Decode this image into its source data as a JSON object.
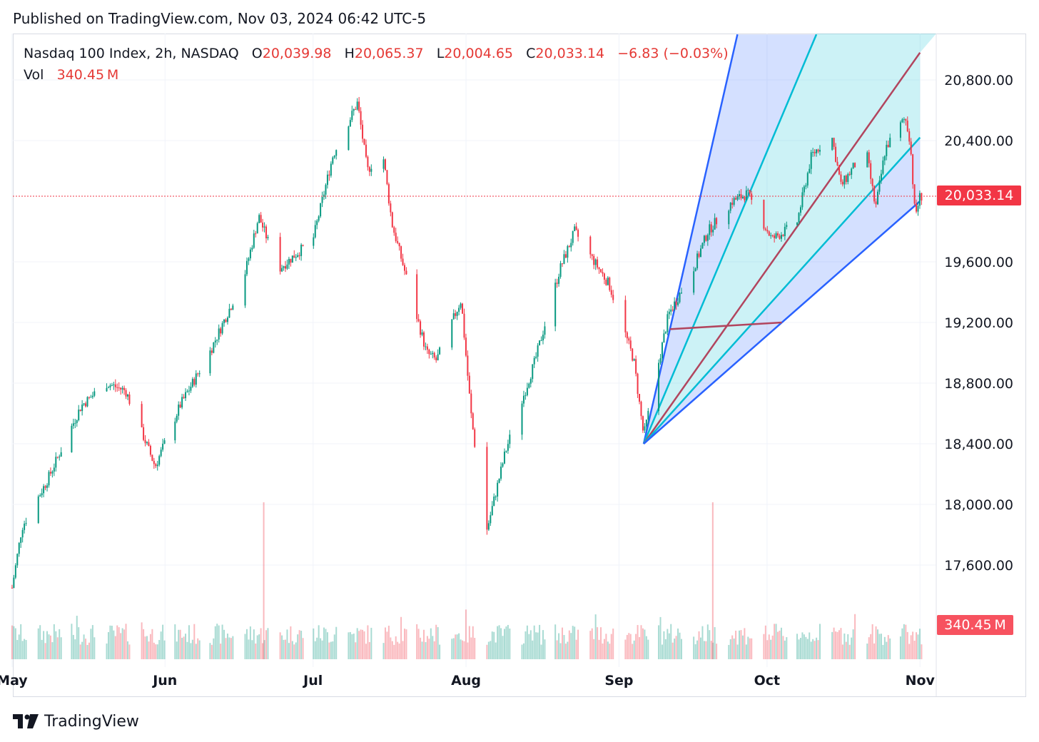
{
  "header": {
    "published": "Published on TradingView.com, Nov 03, 2024 06:42 UTC-5"
  },
  "legend": {
    "symbol": "Nasdaq 100 Index, 2h, NASDAQ",
    "open_label": "O",
    "open": "20,039.98",
    "high_label": "H",
    "high": "20,065.37",
    "low_label": "L",
    "low": "20,004.65",
    "close_label": "C",
    "close": "20,033.14",
    "change": "−6.83 (−0.03%)",
    "vol_label": "Vol",
    "vol": "340.45 M"
  },
  "price_tag": "20,033.14",
  "vol_tag": "340.45 M",
  "brand": {
    "name": "TradingView",
    "icon": "tradingview-logo-icon"
  },
  "colors": {
    "up": "#089981",
    "down": "#f23645",
    "fan_blue": "#2962ff",
    "fan_cyan": "#00bcd4",
    "fan_red": "#b2455e"
  },
  "chart_data": {
    "type": "candlestick",
    "symbol": "Nasdaq 100 Index",
    "interval": "2h",
    "x_labels": [
      "May",
      "Jun",
      "Jul",
      "Aug",
      "Sep",
      "Oct",
      "Nov"
    ],
    "y_ticks": [
      "20,800.00",
      "20,400.00",
      "19,600.00",
      "19,200.00",
      "18,800.00",
      "18,400.00",
      "18,000.00",
      "17,600.00"
    ],
    "y_tick_values": [
      20800,
      20400,
      19600,
      19200,
      18800,
      18400,
      18000,
      17600
    ],
    "ylim": [
      17300,
      21100
    ],
    "last_close": 20033.14,
    "series_anchors": [
      {
        "date": "2024-05-01",
        "close": 17450
      },
      {
        "date": "2024-05-03",
        "close": 17850
      },
      {
        "date": "2024-05-08",
        "close": 18150
      },
      {
        "date": "2024-05-15",
        "close": 18650
      },
      {
        "date": "2024-05-20",
        "close": 18800
      },
      {
        "date": "2024-05-24",
        "close": 18750
      },
      {
        "date": "2024-05-30",
        "close": 18250
      },
      {
        "date": "2024-06-04",
        "close": 18650
      },
      {
        "date": "2024-06-10",
        "close": 19000
      },
      {
        "date": "2024-06-17",
        "close": 19500
      },
      {
        "date": "2024-06-20",
        "close": 19900
      },
      {
        "date": "2024-06-24",
        "close": 19550
      },
      {
        "date": "2024-07-01",
        "close": 19750
      },
      {
        "date": "2024-07-05",
        "close": 20300
      },
      {
        "date": "2024-07-10",
        "close": 20650
      },
      {
        "date": "2024-07-12",
        "close": 20200
      },
      {
        "date": "2024-07-15",
        "close": 20350
      },
      {
        "date": "2024-07-17",
        "close": 19850
      },
      {
        "date": "2024-07-24",
        "close": 19000
      },
      {
        "date": "2024-07-26",
        "close": 18950
      },
      {
        "date": "2024-07-31",
        "close": 19350
      },
      {
        "date": "2024-08-02",
        "close": 18600
      },
      {
        "date": "2024-08-05",
        "close": 17800
      },
      {
        "date": "2024-08-09",
        "close": 18350
      },
      {
        "date": "2024-08-15",
        "close": 18950
      },
      {
        "date": "2024-08-20",
        "close": 19550
      },
      {
        "date": "2024-08-23",
        "close": 19800
      },
      {
        "date": "2024-08-27",
        "close": 19600
      },
      {
        "date": "2024-08-30",
        "close": 19450
      },
      {
        "date": "2024-09-04",
        "close": 18950
      },
      {
        "date": "2024-09-06",
        "close": 18450
      },
      {
        "date": "2024-09-11",
        "close": 19250
      },
      {
        "date": "2024-09-16",
        "close": 19550
      },
      {
        "date": "2024-09-19",
        "close": 19800
      },
      {
        "date": "2024-09-24",
        "close": 20000
      },
      {
        "date": "2024-09-27",
        "close": 20050
      },
      {
        "date": "2024-10-02",
        "close": 19750
      },
      {
        "date": "2024-10-07",
        "close": 19850
      },
      {
        "date": "2024-10-10",
        "close": 20300
      },
      {
        "date": "2024-10-14",
        "close": 20450
      },
      {
        "date": "2024-10-16",
        "close": 20100
      },
      {
        "date": "2024-10-21",
        "close": 20350
      },
      {
        "date": "2024-10-23",
        "close": 19950
      },
      {
        "date": "2024-10-25",
        "close": 20350
      },
      {
        "date": "2024-10-29",
        "close": 20550
      },
      {
        "date": "2024-10-30",
        "close": 20400
      },
      {
        "date": "2024-10-31",
        "close": 19900
      },
      {
        "date": "2024-11-01",
        "close": 20033.14
      }
    ],
    "fan": {
      "anchor": {
        "date": "2024-09-06",
        "price": 18400
      },
      "lines": [
        {
          "color": "#2962ff",
          "to": {
            "date": "2024-09-25",
            "price": 21100
          }
        },
        {
          "color": "#00bcd4",
          "to": {
            "date": "2024-10-11",
            "price": 21100
          }
        },
        {
          "color": "#b2455e",
          "to": {
            "date": "2024-11-01",
            "price": 20980
          }
        },
        {
          "color": "#00bcd4",
          "to": {
            "date": "2024-11-01",
            "price": 20420
          }
        },
        {
          "color": "#2962ff",
          "to": {
            "date": "2024-11-01",
            "price": 20000
          }
        }
      ]
    },
    "volume": {
      "last": "340.45 M",
      "spikes": [
        {
          "date": "2024-06-21"
        },
        {
          "date": "2024-09-20"
        }
      ]
    }
  }
}
